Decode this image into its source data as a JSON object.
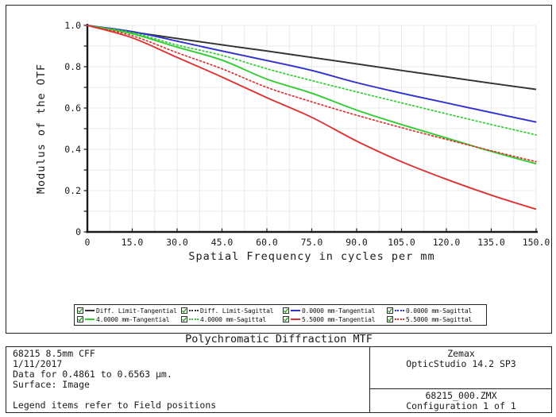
{
  "chart_data": {
    "type": "line",
    "title": "Polychromatic Diffraction MTF",
    "xlabel": "Spatial Frequency in cycles per mm",
    "ylabel": "Modulus of the OTF",
    "xlim": [
      0,
      150
    ],
    "ylim": [
      0,
      1.0
    ],
    "grid": true,
    "minor_grid_x_step": 7.5,
    "minor_grid_y_step": 0.1,
    "xtick_labels": [
      "0",
      "15.0",
      "30.0",
      "45.0",
      "60.0",
      "75.0",
      "90.0",
      "105.0",
      "120.0",
      "135.0",
      "150.0"
    ],
    "ytick_labels": [
      "0",
      "0.2",
      "0.4",
      "0.6",
      "0.8",
      "1.0"
    ],
    "legend_position": "below",
    "x": [
      0,
      15,
      30,
      45,
      60,
      75,
      90,
      105,
      120,
      135,
      150
    ],
    "series": [
      {
        "name": "Diff. Limit-Tangential",
        "color": "#333333",
        "style": "solid",
        "values": [
          1.0,
          0.968,
          0.937,
          0.906,
          0.876,
          0.845,
          0.814,
          0.782,
          0.751,
          0.72,
          0.69
        ]
      },
      {
        "name": "Diff. Limit-Sagittal",
        "color": "#333333",
        "style": "dotted",
        "values": [
          1.0,
          0.968,
          0.937,
          0.906,
          0.876,
          0.845,
          0.814,
          0.782,
          0.751,
          0.72,
          0.69
        ]
      },
      {
        "name": "0.0000 mm-Tangential",
        "color": "#3333cc",
        "style": "solid",
        "values": [
          1.0,
          0.97,
          0.924,
          0.876,
          0.83,
          0.782,
          0.723,
          0.672,
          0.625,
          0.578,
          0.532
        ]
      },
      {
        "name": "0.0000 mm-Sagittal",
        "color": "#3333cc",
        "style": "dotted",
        "values": [
          1.0,
          0.97,
          0.924,
          0.876,
          0.83,
          0.782,
          0.723,
          0.672,
          0.625,
          0.578,
          0.532
        ]
      },
      {
        "name": "4.0000 mm-Tangential",
        "color": "#33cc33",
        "style": "solid",
        "values": [
          1.0,
          0.96,
          0.895,
          0.832,
          0.74,
          0.672,
          0.59,
          0.52,
          0.455,
          0.39,
          0.33
        ]
      },
      {
        "name": "4.0000 mm-Sagittal",
        "color": "#33cc33",
        "style": "dotted",
        "values": [
          1.0,
          0.965,
          0.905,
          0.855,
          0.79,
          0.733,
          0.678,
          0.625,
          0.572,
          0.52,
          0.47
        ]
      },
      {
        "name": "5.5000 mm-Tangential",
        "color": "#dd3333",
        "style": "solid",
        "values": [
          1.0,
          0.94,
          0.845,
          0.75,
          0.65,
          0.555,
          0.44,
          0.34,
          0.255,
          0.178,
          0.11
        ]
      },
      {
        "name": "5.5000 mm-Sagittal",
        "color": "#dd3333",
        "style": "dotted",
        "values": [
          1.0,
          0.95,
          0.868,
          0.79,
          0.7,
          0.63,
          0.565,
          0.505,
          0.448,
          0.393,
          0.34
        ]
      }
    ]
  },
  "legend": {
    "checkbox_checked": true,
    "check_color": "#1fa01f"
  },
  "info": {
    "lens_title": "68215 8.5mm CFF",
    "date": "1/11/2017",
    "data_range": "Data for 0.4861 to 0.6563 µm.",
    "surface": "Surface: Image",
    "legend_note": "Legend items refer to Field positions",
    "app_name": "Zemax",
    "app_version": "OpticStudio 14.2 SP3",
    "file_name": "68215_000.ZMX",
    "configuration": "Configuration 1 of 1"
  },
  "colors": {
    "grid": "#e8e8e8",
    "axis": "#1a1a1a",
    "border": "#222222"
  }
}
